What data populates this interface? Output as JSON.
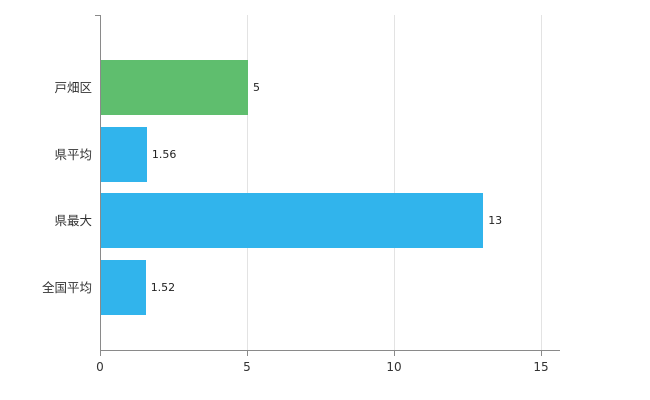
{
  "chart_data": {
    "type": "bar",
    "orientation": "horizontal",
    "title": "",
    "xlabel": "",
    "ylabel": "",
    "categories": [
      "戸畑区",
      "県平均",
      "県最大",
      "全国平均"
    ],
    "values": [
      5,
      1.56,
      13,
      1.52
    ],
    "value_labels": [
      "5",
      "1.56",
      "13",
      "1.52"
    ],
    "bar_colors": [
      "#5fbe6e",
      "#31b4ec",
      "#31b4ec",
      "#31b4ec"
    ],
    "xlim": [
      0,
      15.65
    ],
    "x_ticks": [
      0,
      5,
      10,
      15
    ],
    "x_tick_labels": [
      "0",
      "5",
      "10",
      "15"
    ],
    "grid": "vertical-only",
    "legend": "none",
    "background_color": "#ffffff",
    "gridline_color": "#e3e3e3",
    "axis_color": "#8a8a8a"
  }
}
